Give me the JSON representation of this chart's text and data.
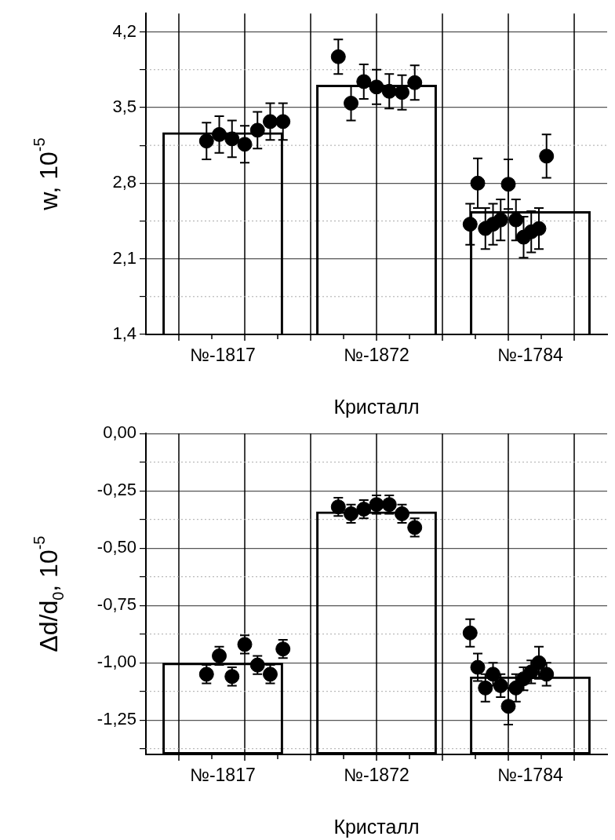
{
  "chart_data": [
    {
      "type": "bar",
      "categories": [
        "№-1817",
        "№-1872",
        "№-1784"
      ],
      "xlabel": "Кристалл",
      "ylabel": "w, 10$^{-5}$",
      "ylim": [
        1.4,
        4.37
      ],
      "yticks": [
        {
          "value": 1.4,
          "label": "1,4"
        },
        {
          "value": 1.75,
          "label": null
        },
        {
          "value": 2.1,
          "label": "2,1"
        },
        {
          "value": 2.45,
          "label": null
        },
        {
          "value": 2.8,
          "label": "2,8"
        },
        {
          "value": 3.15,
          "label": null
        },
        {
          "value": 3.5,
          "label": "3,5"
        },
        {
          "value": 3.85,
          "label": null
        },
        {
          "value": 4.2,
          "label": "4,2"
        }
      ],
      "grid": true,
      "legend": false,
      "series": [
        {
          "type": "bar",
          "color": "#000000",
          "values": [
            3.27,
            3.71,
            2.54
          ]
        },
        {
          "type": "scatter",
          "color": "#000000",
          "marker": "circle",
          "x": [
            "№-1817",
            "№-1817",
            "№-1817",
            "№-1817",
            "№-1817",
            "№-1817",
            "№-1817",
            "№-1872",
            "№-1872",
            "№-1872",
            "№-1872",
            "№-1872",
            "№-1872",
            "№-1872",
            "№-1784",
            "№-1784",
            "№-1784",
            "№-1784",
            "№-1784",
            "№-1784",
            "№-1784",
            "№-1784",
            "№-1784",
            "№-1784",
            "№-1784"
          ],
          "values": [
            3.19,
            3.25,
            3.21,
            3.16,
            3.29,
            3.37,
            3.37,
            3.97,
            3.54,
            3.74,
            3.69,
            3.65,
            3.64,
            3.73,
            2.42,
            2.8,
            2.38,
            2.42,
            2.46,
            2.79,
            2.46,
            2.3,
            2.35,
            2.38,
            3.05
          ],
          "errors": [
            0.17,
            0.17,
            0.17,
            0.17,
            0.17,
            0.17,
            0.17,
            0.16,
            0.16,
            0.16,
            0.16,
            0.16,
            0.16,
            0.16,
            0.19,
            0.23,
            0.19,
            0.19,
            0.19,
            0.23,
            0.19,
            0.19,
            0.19,
            0.19,
            0.2
          ]
        }
      ]
    },
    {
      "type": "bar",
      "categories": [
        "№-1817",
        "№-1872",
        "№-1784"
      ],
      "xlabel": "Кристалл",
      "ylabel": "Δd/d$_{0}$, 10$^{-5}$",
      "ylim": [
        -1.4,
        0
      ],
      "yticks": [
        {
          "value": -1.375,
          "label": null
        },
        {
          "value": -1.25,
          "label": "-1,25"
        },
        {
          "value": -1.125,
          "label": null
        },
        {
          "value": -1,
          "label": "-1,00"
        },
        {
          "value": -0.875,
          "label": null
        },
        {
          "value": -0.75,
          "label": "-0,75"
        },
        {
          "value": -0.625,
          "label": null
        },
        {
          "value": -0.5,
          "label": "-0,50"
        },
        {
          "value": -0.375,
          "label": null
        },
        {
          "value": -0.25,
          "label": "-0,25"
        },
        {
          "value": -0.125,
          "label": null
        },
        {
          "value": 0,
          "label": "0,00"
        }
      ],
      "grid": true,
      "legend": false,
      "series": [
        {
          "type": "bar",
          "color": "#000000",
          "base": [
            -1.4,
            -1.4,
            -1.4
          ],
          "values": [
            0.4,
            1.06,
            0.34
          ]
        },
        {
          "type": "scatter",
          "color": "#000000",
          "marker": "circle",
          "x": [
            "№-1817",
            "№-1817",
            "№-1817",
            "№-1817",
            "№-1817",
            "№-1817",
            "№-1817",
            "№-1872",
            "№-1872",
            "№-1872",
            "№-1872",
            "№-1872",
            "№-1872",
            "№-1872",
            "№-1784",
            "№-1784",
            "№-1784",
            "№-1784",
            "№-1784",
            "№-1784",
            "№-1784",
            "№-1784",
            "№-1784",
            "№-1784",
            "№-1784"
          ],
          "values": [
            -1.05,
            -0.97,
            -1.06,
            -0.92,
            -1.01,
            -1.05,
            -0.94,
            -0.32,
            -0.35,
            -0.33,
            -0.31,
            -0.31,
            -0.35,
            -0.41,
            -0.87,
            -1.02,
            -1.11,
            -1.05,
            -1.1,
            -1.19,
            -1.11,
            -1.07,
            -1.04,
            -1.0,
            -1.05
          ],
          "errors": [
            0.04,
            0.04,
            0.04,
            0.04,
            0.04,
            0.04,
            0.04,
            0.04,
            0.04,
            0.04,
            0.04,
            0.04,
            0.04,
            0.04,
            0.06,
            0.06,
            0.06,
            0.05,
            0.05,
            0.08,
            0.06,
            0.05,
            0.05,
            0.07,
            0.05
          ]
        }
      ]
    }
  ]
}
